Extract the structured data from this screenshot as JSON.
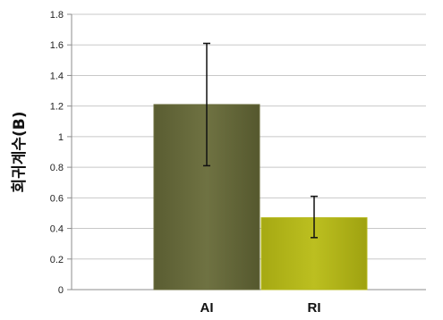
{
  "chart_data": {
    "type": "bar",
    "title": "",
    "xlabel": "",
    "ylabel": "회귀계수(B)",
    "categories": [
      "AI",
      "RI"
    ],
    "series": [
      {
        "values": [
          1.21,
          0.47
        ],
        "error_low": [
          0.81,
          0.34
        ],
        "error_high": [
          1.61,
          0.61
        ]
      }
    ],
    "bar_colors": [
      "#6b6e3e",
      "#b5b81a"
    ],
    "ylim": [
      0,
      1.8
    ],
    "yticks": [
      "0",
      "0.2",
      "0.4",
      "0.6",
      "0.8",
      "1",
      "1.2",
      "1.4",
      "1.6",
      "1.8"
    ],
    "grid": true,
    "legend": "none"
  }
}
